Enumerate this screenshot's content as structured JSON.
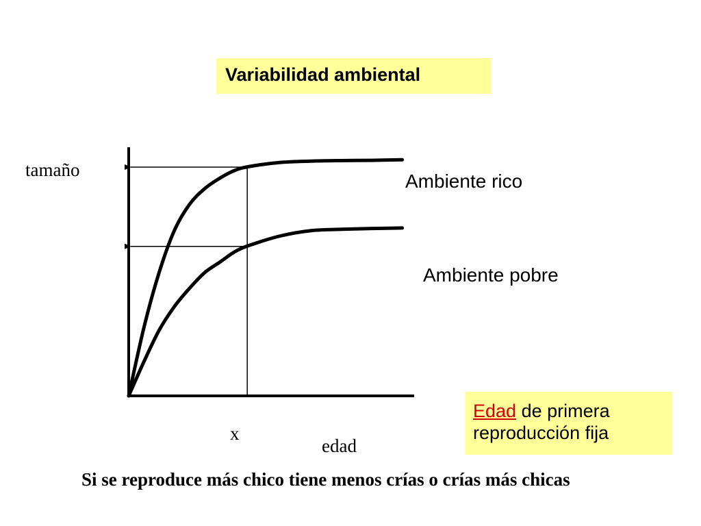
{
  "title": "Variabilidad ambiental",
  "note": {
    "highlight": "Edad",
    "rest": " de primera reproducción fija"
  },
  "footnote": "Si se reproduce más chico tiene menos crías o crías más chicas",
  "colors": {
    "box_background": "#ffff99",
    "highlight": "#d00000",
    "lines": "#000000"
  },
  "chart_data": {
    "type": "line",
    "title": "",
    "xlabel": "edad",
    "ylabel": "tamaño",
    "xlim": [
      0,
      10
    ],
    "ylim": [
      0,
      10
    ],
    "x_marker": {
      "label": "x",
      "value": 3.9
    },
    "series": [
      {
        "name": "Ambiente rico",
        "x": [
          0,
          0.5,
          1,
          1.5,
          2,
          2.5,
          3,
          3.5,
          4,
          5,
          6,
          7,
          8,
          9
        ],
        "y": [
          0,
          2.6,
          4.7,
          6.3,
          7.3,
          7.9,
          8.3,
          8.6,
          8.75,
          8.9,
          8.95,
          8.97,
          8.98,
          9.0
        ]
      },
      {
        "name": "Ambiente pobre",
        "x": [
          0,
          0.5,
          1,
          1.5,
          2,
          2.5,
          3,
          3.5,
          4,
          5,
          6,
          7,
          8,
          9
        ],
        "y": [
          0,
          1.3,
          2.5,
          3.4,
          4.1,
          4.7,
          5.1,
          5.5,
          5.75,
          6.1,
          6.3,
          6.35,
          6.38,
          6.4
        ]
      }
    ],
    "grid": false,
    "legend": "none"
  }
}
